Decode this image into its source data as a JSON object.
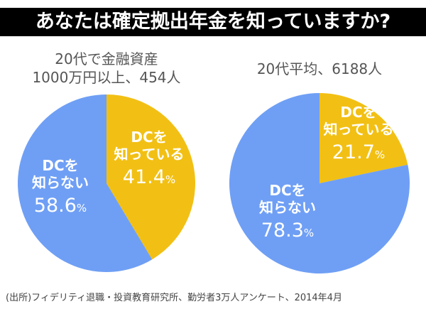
{
  "title": "あなたは確定拠出年金を知っていますか?",
  "source": "(出所)フィデリティ退職・投資教育研究所、勤労者3万人アンケート、2014年4月",
  "colors": {
    "know": "#f2c014",
    "dont_know": "#6f9ff5"
  },
  "chart_data": [
    {
      "type": "pie",
      "title_lines": [
        "20代で金融資産",
        "1000万円以上、454人"
      ],
      "slices": [
        {
          "label_lines": [
            "DCを",
            "知っている"
          ],
          "value": 41.4,
          "value_text": "41.4",
          "unit": "%"
        },
        {
          "label_lines": [
            "DCを",
            "知らない"
          ],
          "value": 58.6,
          "value_text": "58.6",
          "unit": "%"
        }
      ]
    },
    {
      "type": "pie",
      "title_lines": [
        "20代平均、6188人"
      ],
      "slices": [
        {
          "label_lines": [
            "DCを",
            "知っている"
          ],
          "value": 21.7,
          "value_text": "21.7",
          "unit": "%"
        },
        {
          "label_lines": [
            "DCを",
            "知らない"
          ],
          "value": 78.3,
          "value_text": "78.3",
          "unit": "%"
        }
      ]
    }
  ]
}
